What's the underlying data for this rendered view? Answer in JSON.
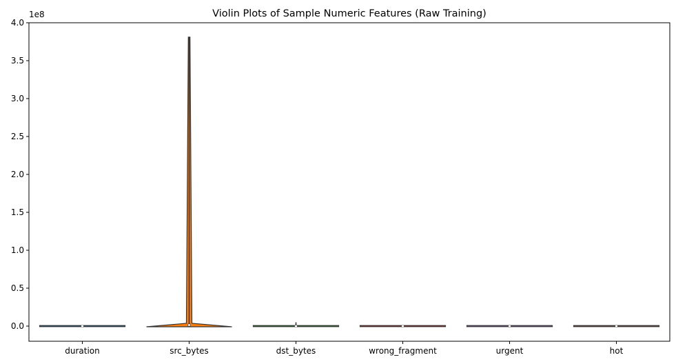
{
  "chart_data": {
    "type": "violin",
    "title": "Violin Plots of Sample Numeric Features (Raw Training)",
    "xlabel": "",
    "ylabel": "",
    "y_offset_label": "1e8",
    "ylim": [
      -0.2,
      4.0
    ],
    "y_ticks": [
      "0.0",
      "0.5",
      "1.0",
      "1.5",
      "2.0",
      "2.5",
      "3.0",
      "3.5",
      "4.0"
    ],
    "y_tick_values": [
      0,
      0.5,
      1.0,
      1.5,
      2.0,
      2.5,
      3.0,
      3.5,
      4.0
    ],
    "categories": [
      "duration",
      "src_bytes",
      "dst_bytes",
      "wrong_fragment",
      "urgent",
      "hot"
    ],
    "features": [
      {
        "name": "duration",
        "max": 0.0006,
        "color": "#1f77b4"
      },
      {
        "name": "src_bytes",
        "max": 3.81,
        "color": "#ff7f0e"
      },
      {
        "name": "dst_bytes",
        "max": 0.05,
        "color": "#2ca02c"
      },
      {
        "name": "wrong_fragment",
        "max": 0.0,
        "color": "#d62728"
      },
      {
        "name": "urgent",
        "max": 0.0,
        "color": "#9467bd"
      },
      {
        "name": "hot",
        "max": 0.0,
        "color": "#8c564b"
      }
    ],
    "grid": false,
    "legend": "none"
  }
}
